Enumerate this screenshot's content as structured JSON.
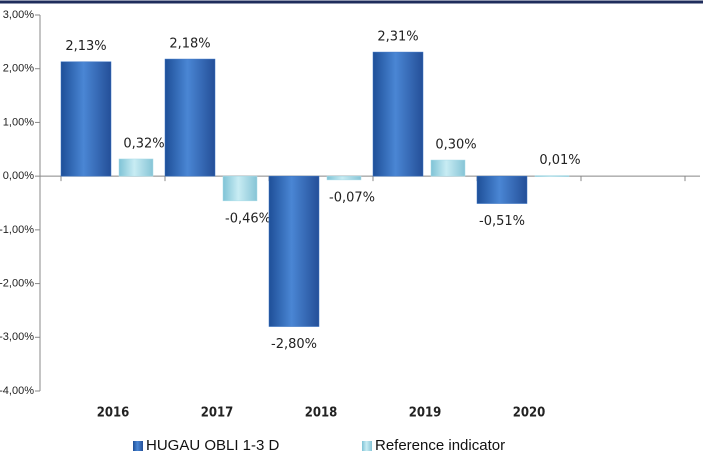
{
  "chart_data": {
    "type": "bar",
    "categories": [
      "2016",
      "2017",
      "2018",
      "2019",
      "2020"
    ],
    "series": [
      {
        "name": "HUGAU OBLI 1-3 D",
        "color": "#3a74c4",
        "values": [
          2.13,
          2.18,
          -2.8,
          2.31,
          -0.51
        ],
        "value_labels": [
          "2,13%",
          "2,18%",
          "-2,80%",
          "2,31%",
          "-0,51%"
        ]
      },
      {
        "name": "Reference indicator",
        "color": "#a8dce8",
        "values": [
          0.32,
          -0.46,
          -0.07,
          0.3,
          0.01
        ],
        "value_labels": [
          "0,32%",
          "-0,46%",
          "-0,07%",
          "0,30%",
          "0,01%"
        ]
      }
    ],
    "ylim": [
      -4,
      3
    ],
    "yticks": [
      {
        "value": -4,
        "label": "-4,00%"
      },
      {
        "value": -3,
        "label": "-3,00%"
      },
      {
        "value": -2,
        "label": "-2,00%"
      },
      {
        "value": -1,
        "label": "-1,00%"
      },
      {
        "value": 0,
        "label": "0,00%"
      },
      {
        "value": 1,
        "label": "1,00%"
      },
      {
        "value": 2,
        "label": "2,00%"
      },
      {
        "value": 3,
        "label": "3,00%"
      }
    ],
    "legend": "bottom"
  }
}
